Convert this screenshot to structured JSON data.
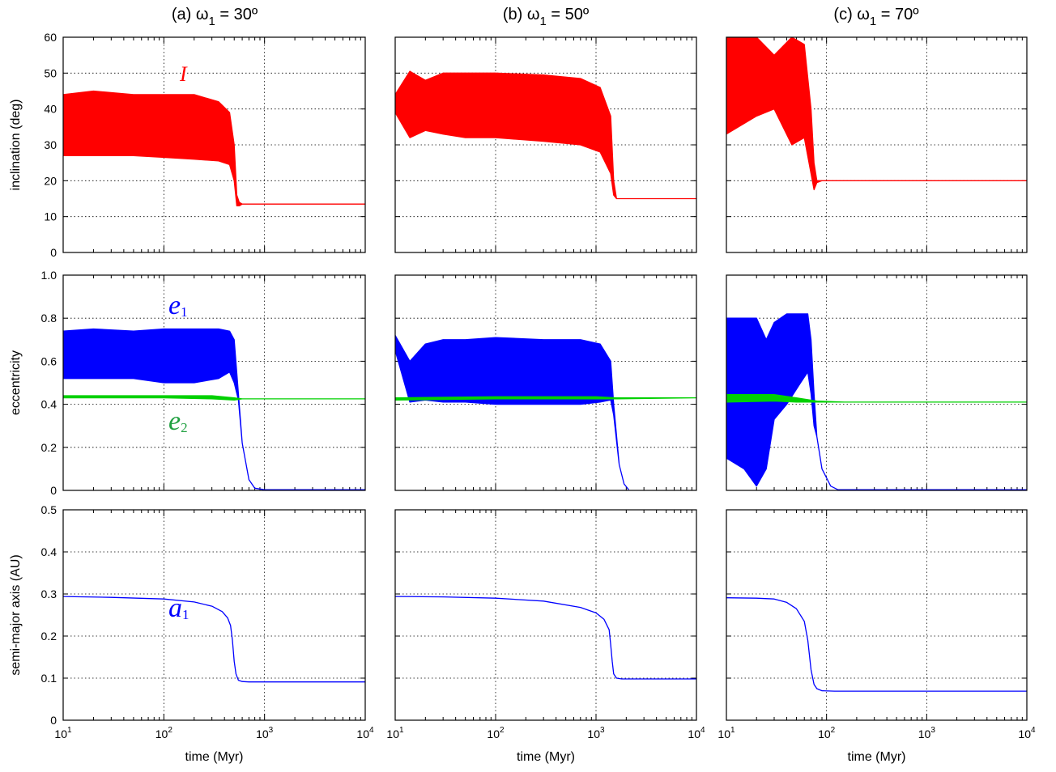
{
  "figure": {
    "columns": [
      {
        "prefix": "(a) ",
        "omega": "ω",
        "sub": "1",
        "value": " = 30º"
      },
      {
        "prefix": "(b) ",
        "omega": "ω",
        "sub": "1",
        "value": " = 50º"
      },
      {
        "prefix": "(c) ",
        "omega": "ω",
        "sub": "1",
        "value": " = 70º"
      }
    ],
    "row_ylabels": [
      "inclination (deg)",
      "eccentricity",
      "semi-major axis (AU)"
    ],
    "xlabel": "time (Myr)",
    "annotations": {
      "inclination": "I",
      "e1": {
        "base": "e",
        "sub": "1"
      },
      "e2": {
        "base": "e",
        "sub": "2"
      },
      "a1": {
        "base": "a",
        "sub": "1"
      }
    },
    "colors": {
      "inclination": "#ff0000",
      "e1": "#0000ff",
      "e2": "#00d000",
      "a1": "#0000ff"
    }
  },
  "chart_data": [
    {
      "row": "inclination",
      "type": "line",
      "ylabel": "inclination (deg)",
      "ylim": [
        0,
        60
      ],
      "yticks": [
        "0",
        "10",
        "20",
        "30",
        "40",
        "50",
        "60"
      ],
      "xscale": "log",
      "xlim": [
        10,
        10000
      ],
      "grid": true,
      "panels": [
        {
          "column": "(a) ω1 = 30º",
          "series": [
            {
              "name": "I",
              "color": "#ff0000",
              "envelope": {
                "x": [
                  10,
                  20,
                  50,
                  100,
                  200,
                  350,
                  450,
                  500,
                  530,
                  560,
                  600,
                  1000,
                  10000
                ],
                "upper": [
                  44,
                  45,
                  44,
                  44,
                  44,
                  42,
                  39,
                  30,
                  16,
                  14,
                  13.5,
                  13.5,
                  13.5
                ],
                "lower": [
                  27,
                  27,
                  27,
                  26.5,
                  26,
                  25.5,
                  24.5,
                  20,
                  13,
                  13,
                  13.5,
                  13.5,
                  13.5
                ]
              }
            }
          ]
        },
        {
          "column": "(b) ω1 = 50º",
          "series": [
            {
              "name": "I",
              "color": "#ff0000",
              "envelope": {
                "x": [
                  10,
                  14,
                  20,
                  30,
                  50,
                  100,
                  300,
                  700,
                  1100,
                  1400,
                  1500,
                  1600,
                  2000,
                  10000
                ],
                "upper": [
                  44,
                  50.5,
                  48,
                  50,
                  50,
                  50,
                  49.5,
                  48.5,
                  46,
                  38,
                  20,
                  15,
                  15,
                  15
                ],
                "lower": [
                  39,
                  32,
                  34,
                  33,
                  32,
                  32,
                  31,
                  30,
                  28,
                  22,
                  16,
                  15,
                  15,
                  15
                ]
              }
            }
          ]
        },
        {
          "column": "(c) ω1 = 70º",
          "series": [
            {
              "name": "I",
              "color": "#ff0000",
              "envelope": {
                "x": [
                  10,
                  20,
                  30,
                  45,
                  60,
                  70,
                  75,
                  80,
                  90,
                  10000
                ],
                "upper": [
                  60,
                  60,
                  55,
                  60,
                  58,
                  40,
                  25,
                  20,
                  20,
                  20
                ],
                "lower": [
                  33,
                  38,
                  40,
                  30,
                  32,
                  22,
                  17.5,
                  19.5,
                  20,
                  20
                ]
              }
            }
          ]
        }
      ]
    },
    {
      "row": "eccentricity",
      "type": "line",
      "ylabel": "eccentricity",
      "ylim": [
        0,
        1.0
      ],
      "yticks": [
        "0",
        "0.2",
        "0.4",
        "0.6",
        "0.8",
        "1.0"
      ],
      "xscale": "log",
      "xlim": [
        10,
        10000
      ],
      "grid": true,
      "panels": [
        {
          "column": "(a) ω1 = 30º",
          "series": [
            {
              "name": "e1",
              "color": "#0000ff",
              "envelope": {
                "x": [
                  10,
                  20,
                  50,
                  100,
                  200,
                  350,
                  450,
                  500,
                  550,
                  600,
                  700,
                  800,
                  1000,
                  10000
                ],
                "upper": [
                  0.74,
                  0.75,
                  0.74,
                  0.75,
                  0.75,
                  0.75,
                  0.74,
                  0.7,
                  0.45,
                  0.22,
                  0.05,
                  0.01,
                  0.003,
                  0.003
                ],
                "lower": [
                  0.52,
                  0.52,
                  0.52,
                  0.5,
                  0.5,
                  0.52,
                  0.55,
                  0.5,
                  0.42,
                  0.22,
                  0.05,
                  0.01,
                  0.003,
                  0.003
                ]
              }
            },
            {
              "name": "e2",
              "color": "#00d000",
              "envelope": {
                "x": [
                  10,
                  100,
                  300,
                  500,
                  600,
                  10000
                ],
                "upper": [
                  0.44,
                  0.44,
                  0.44,
                  0.43,
                  0.425,
                  0.425
                ],
                "lower": [
                  0.43,
                  0.43,
                  0.425,
                  0.42,
                  0.425,
                  0.425
                ]
              }
            }
          ]
        },
        {
          "column": "(b) ω1 = 50º",
          "series": [
            {
              "name": "e1",
              "color": "#0000ff",
              "envelope": {
                "x": [
                  10,
                  14,
                  20,
                  30,
                  50,
                  100,
                  300,
                  700,
                  1100,
                  1400,
                  1500,
                  1700,
                  1900,
                  2100
                ],
                "upper": [
                  0.72,
                  0.6,
                  0.68,
                  0.7,
                  0.7,
                  0.71,
                  0.7,
                  0.7,
                  0.68,
                  0.6,
                  0.4,
                  0.12,
                  0.03,
                  0.005
                ],
                "lower": [
                  0.65,
                  0.41,
                  0.42,
                  0.41,
                  0.41,
                  0.4,
                  0.4,
                  0.4,
                  0.41,
                  0.42,
                  0.35,
                  0.12,
                  0.03,
                  0.005
                ]
              }
            },
            {
              "name": "e2",
              "color": "#00d000",
              "envelope": {
                "x": [
                  10,
                  100,
                  1000,
                  1600,
                  10000
                ],
                "upper": [
                  0.43,
                  0.435,
                  0.435,
                  0.43,
                  0.43
                ],
                "lower": [
                  0.42,
                  0.425,
                  0.425,
                  0.425,
                  0.43
                ]
              }
            }
          ]
        },
        {
          "column": "(c) ω1 = 70º",
          "series": [
            {
              "name": "e1",
              "color": "#0000ff",
              "envelope": {
                "x": [
                  10,
                  15,
                  20,
                  25,
                  30,
                  40,
                  55,
                  65,
                  70,
                  75,
                  80,
                  90,
                  110,
                  130,
                  10000
                ],
                "upper": [
                  0.8,
                  0.8,
                  0.8,
                  0.7,
                  0.78,
                  0.82,
                  0.82,
                  0.82,
                  0.7,
                  0.45,
                  0.25,
                  0.1,
                  0.02,
                  0.003,
                  0.003
                ],
                "lower": [
                  0.15,
                  0.1,
                  0.02,
                  0.1,
                  0.33,
                  0.4,
                  0.5,
                  0.55,
                  0.45,
                  0.3,
                  0.25,
                  0.1,
                  0.02,
                  0.003,
                  0.003
                ]
              }
            },
            {
              "name": "e2",
              "color": "#00d000",
              "envelope": {
                "x": [
                  10,
                  30,
                  50,
                  80,
                  150,
                  10000
                ],
                "upper": [
                  0.445,
                  0.445,
                  0.43,
                  0.415,
                  0.41,
                  0.41
                ],
                "lower": [
                  0.41,
                  0.415,
                  0.41,
                  0.41,
                  0.41,
                  0.41
                ]
              }
            }
          ]
        }
      ]
    },
    {
      "row": "semi-major axis",
      "type": "line",
      "ylabel": "semi-major axis (AU)",
      "ylim": [
        0,
        0.5
      ],
      "yticks": [
        "0",
        "0.1",
        "0.2",
        "0.3",
        "0.4",
        "0.5"
      ],
      "xscale": "log",
      "xlim": [
        10,
        10000
      ],
      "xticks": [
        10,
        100,
        1000,
        10000
      ],
      "xticklabels": [
        {
          "base": "10",
          "exp": "1"
        },
        {
          "base": "10",
          "exp": "2"
        },
        {
          "base": "10",
          "exp": "3"
        },
        {
          "base": "10",
          "exp": "4"
        }
      ],
      "xlabel": "time (Myr)",
      "grid": true,
      "panels": [
        {
          "column": "(a) ω1 = 30º",
          "series": [
            {
              "name": "a1",
              "color": "#0000ff",
              "x": [
                10,
                30,
                100,
                200,
                300,
                380,
                430,
                460,
                480,
                500,
                520,
                550,
                600,
                700,
                1000,
                10000
              ],
              "y": [
                0.294,
                0.292,
                0.288,
                0.281,
                0.271,
                0.258,
                0.243,
                0.225,
                0.19,
                0.14,
                0.11,
                0.095,
                0.092,
                0.091,
                0.091,
                0.091
              ]
            }
          ]
        },
        {
          "column": "(b) ω1 = 50º",
          "series": [
            {
              "name": "a1",
              "color": "#0000ff",
              "x": [
                10,
                30,
                100,
                300,
                700,
                1000,
                1200,
                1350,
                1400,
                1450,
                1500,
                1600,
                1800,
                2500,
                10000
              ],
              "y": [
                0.294,
                0.293,
                0.29,
                0.283,
                0.268,
                0.255,
                0.24,
                0.215,
                0.18,
                0.14,
                0.11,
                0.1,
                0.098,
                0.098,
                0.098
              ]
            }
          ]
        },
        {
          "column": "(c) ω1 = 70º",
          "series": [
            {
              "name": "a1",
              "color": "#0000ff",
              "x": [
                10,
                20,
                30,
                40,
                50,
                60,
                65,
                70,
                75,
                80,
                90,
                120,
                10000
              ],
              "y": [
                0.291,
                0.29,
                0.288,
                0.28,
                0.265,
                0.235,
                0.19,
                0.12,
                0.085,
                0.075,
                0.07,
                0.069,
                0.069
              ]
            }
          ]
        }
      ]
    }
  ]
}
